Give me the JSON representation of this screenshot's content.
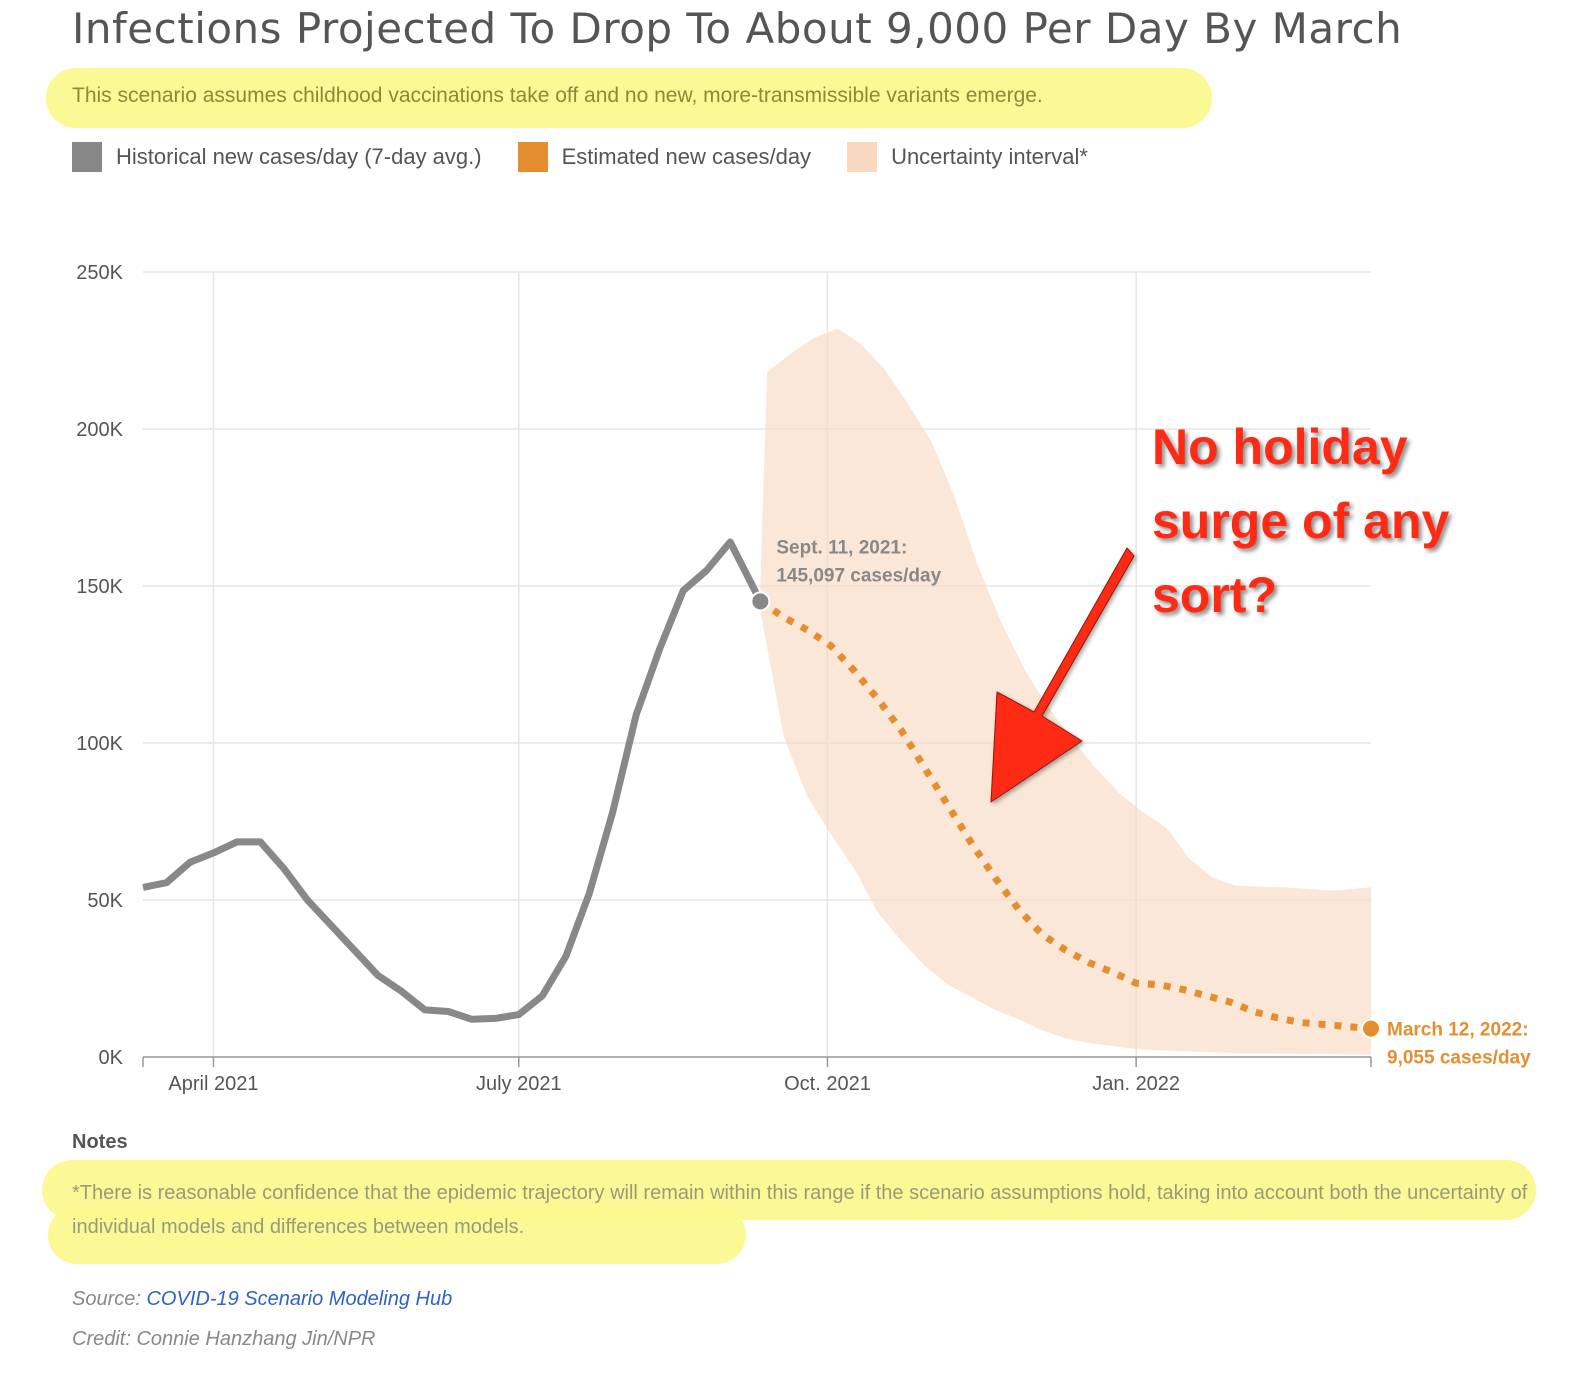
{
  "header": {
    "title": "Infections Projected To Drop To About 9,000 Per Day By March",
    "subtitle": "This scenario assumes childhood vaccinations take off and no new, more-transmissible variants emerge."
  },
  "legend": [
    {
      "label": "Historical new cases/day (7-day avg.)",
      "color": "#888888"
    },
    {
      "label": "Estimated new cases/day",
      "color": "#e58e2f"
    },
    {
      "label": "Uncertainty interval*",
      "color": "#f8d8bf"
    }
  ],
  "annotation": {
    "lines": [
      "No holiday",
      "surge of any",
      "sort?"
    ],
    "color": "#ff2a14"
  },
  "notes": {
    "heading": "Notes",
    "text": "*There is reasonable confidence that the epidemic trajectory will remain within this range if the scenario assumptions hold, taking into account both the uncertainty of individual models and differences between models."
  },
  "source": {
    "prefix": "Source: ",
    "link_text": "COVID-19 Scenario Modeling Hub"
  },
  "credit": "Credit: Connie Hanzhang Jin/NPR",
  "chart_data": {
    "type": "line",
    "title": "Infections Projected To Drop To About 9,000 Per Day By March",
    "subtitle": "This scenario assumes childhood vaccinations take off and no new, more-transmissible variants emerge.",
    "x_range": [
      "2021-03-11",
      "2022-03-12"
    ],
    "ylim": [
      0,
      250000
    ],
    "y_ticks": [
      0,
      50000,
      100000,
      150000,
      200000,
      250000
    ],
    "y_tick_labels": [
      "0K",
      "50K",
      "100K",
      "150K",
      "200K",
      "250K"
    ],
    "x_ticks": [
      {
        "date": "2021-04-01",
        "label": "April 2021"
      },
      {
        "date": "2021-07-01",
        "label": "July 2021"
      },
      {
        "date": "2021-10-01",
        "label": "Oct. 2021"
      },
      {
        "date": "2022-01-01",
        "label": "Jan. 2022"
      }
    ],
    "grid": true,
    "legend_position": "top-left",
    "series": [
      {
        "name": "Historical new cases/day (7-day avg.)",
        "color": "#888888",
        "style": "solid",
        "points": [
          [
            "2021-03-11",
            54000
          ],
          [
            "2021-03-18",
            55500
          ],
          [
            "2021-03-25",
            62000
          ],
          [
            "2021-04-01",
            65000
          ],
          [
            "2021-04-08",
            68500
          ],
          [
            "2021-04-15",
            68500
          ],
          [
            "2021-04-22",
            60000
          ],
          [
            "2021-04-29",
            50000
          ],
          [
            "2021-05-06",
            42000
          ],
          [
            "2021-05-13",
            34000
          ],
          [
            "2021-05-20",
            26000
          ],
          [
            "2021-05-27",
            21000
          ],
          [
            "2021-06-03",
            15000
          ],
          [
            "2021-06-10",
            14500
          ],
          [
            "2021-06-17",
            12000
          ],
          [
            "2021-06-24",
            12300
          ],
          [
            "2021-07-01",
            13500
          ],
          [
            "2021-07-08",
            19500
          ],
          [
            "2021-07-15",
            32000
          ],
          [
            "2021-07-22",
            52000
          ],
          [
            "2021-07-29",
            78000
          ],
          [
            "2021-08-05",
            109000
          ],
          [
            "2021-08-12",
            130000
          ],
          [
            "2021-08-19",
            148500
          ],
          [
            "2021-08-26",
            155000
          ],
          [
            "2021-09-02",
            164000
          ],
          [
            "2021-09-11",
            145097
          ]
        ]
      },
      {
        "name": "Estimated new cases/day",
        "color": "#e58e2f",
        "style": "dotted",
        "points": [
          [
            "2021-09-11",
            145097
          ],
          [
            "2021-09-18",
            140000
          ],
          [
            "2021-09-25",
            136000
          ],
          [
            "2021-10-02",
            131000
          ],
          [
            "2021-10-09",
            123000
          ],
          [
            "2021-10-16",
            114000
          ],
          [
            "2021-10-23",
            104000
          ],
          [
            "2021-10-30",
            92000
          ],
          [
            "2021-11-06",
            80000
          ],
          [
            "2021-11-13",
            68000
          ],
          [
            "2021-11-20",
            57000
          ],
          [
            "2021-11-27",
            47000
          ],
          [
            "2021-12-04",
            39000
          ],
          [
            "2021-12-11",
            34000
          ],
          [
            "2021-12-18",
            30000
          ],
          [
            "2021-12-25",
            27000
          ],
          [
            "2022-01-01",
            23500
          ],
          [
            "2022-01-08",
            23000
          ],
          [
            "2022-01-15",
            21500
          ],
          [
            "2022-01-22",
            19500
          ],
          [
            "2022-01-29",
            17500
          ],
          [
            "2022-02-05",
            14500
          ],
          [
            "2022-02-12",
            12500
          ],
          [
            "2022-02-19",
            11000
          ],
          [
            "2022-03-12",
            9055
          ]
        ]
      }
    ],
    "uncertainty_interval": {
      "name": "Uncertainty interval*",
      "color": "#f8d8bf",
      "upper": [
        [
          "2021-09-11",
          152000
        ],
        [
          "2021-09-13",
          218000
        ],
        [
          "2021-09-20",
          224000
        ],
        [
          "2021-09-27",
          229000
        ],
        [
          "2021-10-04",
          232000
        ],
        [
          "2021-10-11",
          227000
        ],
        [
          "2021-10-18",
          219000
        ],
        [
          "2021-10-25",
          208000
        ],
        [
          "2021-11-01",
          196000
        ],
        [
          "2021-11-08",
          178000
        ],
        [
          "2021-11-15",
          156000
        ],
        [
          "2021-11-22",
          138000
        ],
        [
          "2021-11-29",
          123000
        ],
        [
          "2021-12-06",
          111000
        ],
        [
          "2021-12-13",
          101000
        ],
        [
          "2021-12-20",
          92000
        ],
        [
          "2021-12-27",
          84000
        ],
        [
          "2022-01-03",
          78000
        ],
        [
          "2022-01-10",
          73000
        ],
        [
          "2022-01-17",
          63000
        ],
        [
          "2022-01-24",
          57000
        ],
        [
          "2022-01-31",
          54500
        ],
        [
          "2022-02-14",
          54000
        ],
        [
          "2022-03-01",
          53000
        ],
        [
          "2022-03-12",
          54000
        ]
      ],
      "lower": [
        [
          "2021-09-11",
          142000
        ],
        [
          "2021-09-18",
          102000
        ],
        [
          "2021-09-25",
          83000
        ],
        [
          "2021-10-02",
          71000
        ],
        [
          "2021-10-09",
          60000
        ],
        [
          "2021-10-16",
          46000
        ],
        [
          "2021-10-23",
          37000
        ],
        [
          "2021-10-30",
          29000
        ],
        [
          "2021-11-06",
          23000
        ],
        [
          "2021-11-13",
          19000
        ],
        [
          "2021-11-20",
          15000
        ],
        [
          "2021-11-27",
          12000
        ],
        [
          "2021-12-04",
          8500
        ],
        [
          "2021-12-11",
          6000
        ],
        [
          "2021-12-18",
          4500
        ],
        [
          "2021-12-25",
          3500
        ],
        [
          "2022-01-01",
          2500
        ],
        [
          "2022-01-15",
          1800
        ],
        [
          "2022-02-01",
          1200
        ],
        [
          "2022-03-12",
          800
        ]
      ]
    },
    "annotations": [
      {
        "date": "2021-09-11",
        "value": 145097,
        "lines": [
          "Sept. 11, 2021:",
          "145,097 cases/day"
        ],
        "color": "#888888"
      },
      {
        "date": "2022-03-12",
        "value": 9055,
        "lines": [
          "March 12, 2022:",
          "9,055 cases/day"
        ],
        "color": "#e58e2f"
      }
    ]
  }
}
